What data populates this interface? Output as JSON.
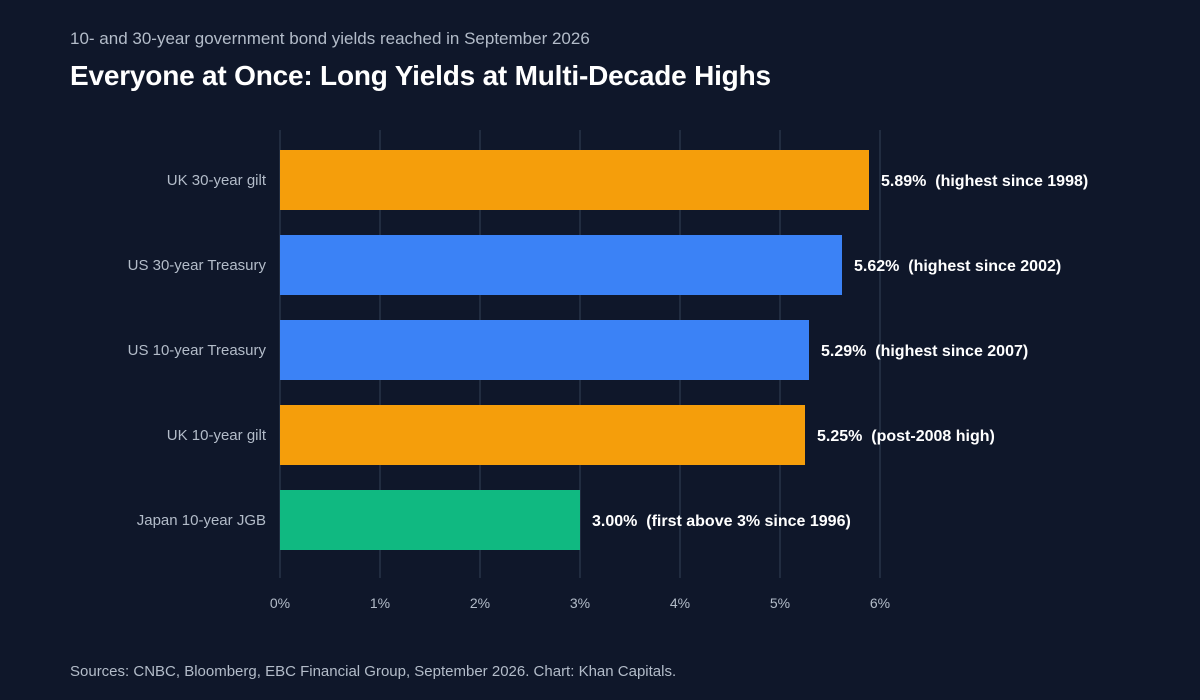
{
  "header": {
    "subtitle": "10- and 30-year government bond yields reached in September 2026",
    "title": "Everyone at Once: Long Yields at Multi-Decade Highs"
  },
  "footer": {
    "source": "Sources: CNBC, Bloomberg, EBC Financial Group, September 2026. Chart: Khan Capitals."
  },
  "colors": {
    "background": "#0f172a",
    "uk": "#f59e0b",
    "us": "#3b82f6",
    "japan": "#10b981",
    "grid": "#334155",
    "muted_text": "#b3bcc9"
  },
  "chart_data": {
    "type": "bar",
    "orientation": "horizontal",
    "categories": [
      "UK 30-year gilt",
      "US 30-year Treasury",
      "US 10-year Treasury",
      "UK 10-year gilt",
      "Japan 10-year JGB"
    ],
    "values": [
      5.89,
      5.62,
      5.29,
      5.25,
      3.0
    ],
    "bar_colors": [
      "#f59e0b",
      "#3b82f6",
      "#3b82f6",
      "#f59e0b",
      "#10b981"
    ],
    "data_labels": [
      "5.89%  (highest since 1998)",
      "5.62%  (highest since 2002)",
      "5.29%  (highest since 2007)",
      "5.25%  (post-2008 high)",
      "3.00%  (first above 3% since 1996)"
    ],
    "xlim": [
      0,
      6
    ],
    "x_ticks": [
      0,
      1,
      2,
      3,
      4,
      5,
      6
    ],
    "x_tick_labels": [
      "0%",
      "1%",
      "2%",
      "3%",
      "4%",
      "5%",
      "6%"
    ],
    "xlabel": "",
    "ylabel": "",
    "grid": true,
    "legend": false
  }
}
